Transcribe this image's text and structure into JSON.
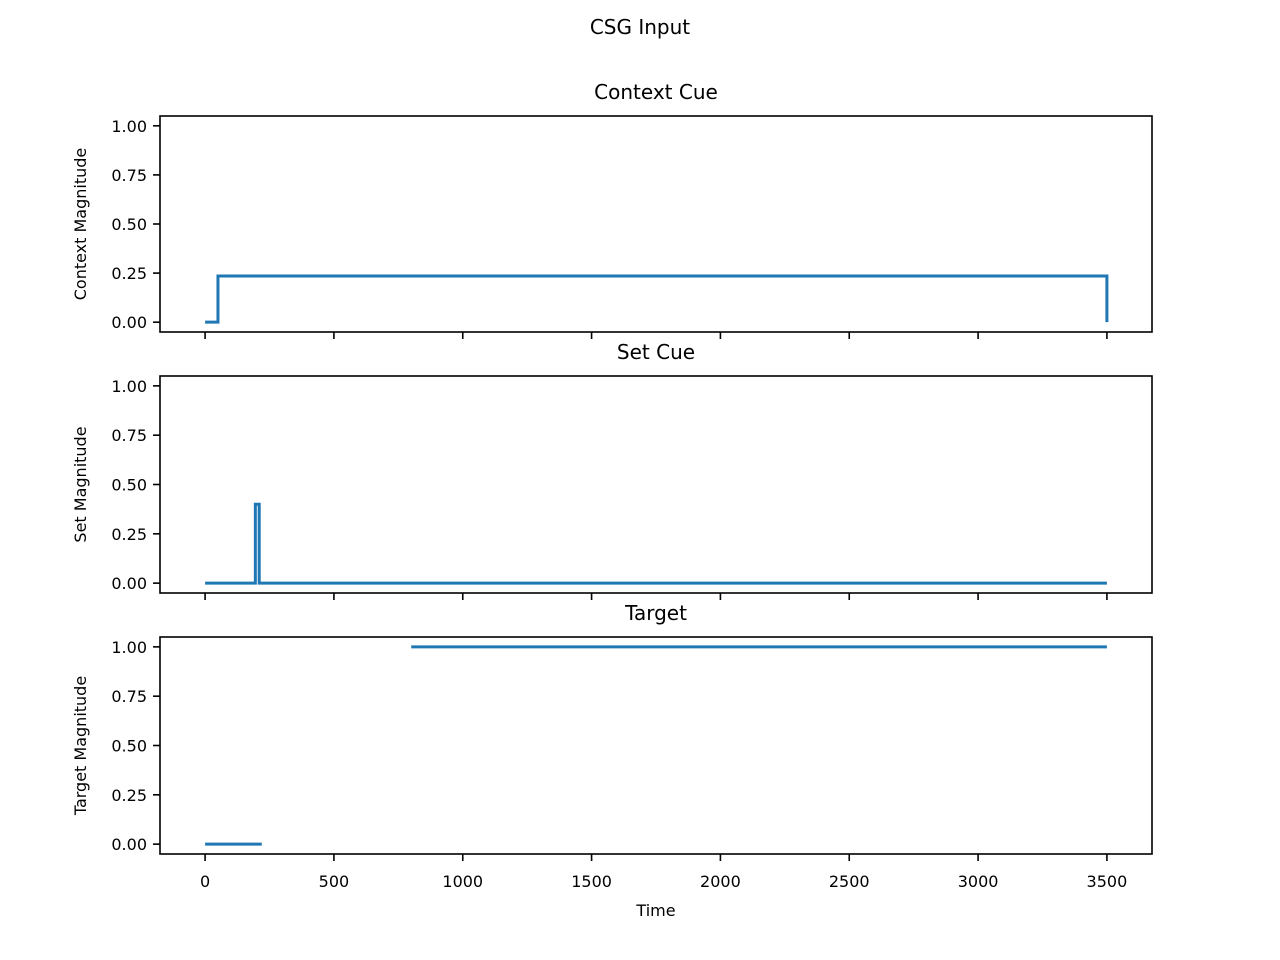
{
  "figure": {
    "suptitle": "CSG Input",
    "colors": {
      "series": "#1f77b4",
      "axes": "#000000",
      "background": "#ffffff"
    }
  },
  "chart_data": [
    {
      "type": "line",
      "title": "Context Cue",
      "xlabel": "",
      "ylabel": "Context Magnitude",
      "xlim": [
        -175,
        3675
      ],
      "ylim": [
        -0.05,
        1.05
      ],
      "xticks": [
        0,
        500,
        1000,
        1500,
        2000,
        2500,
        3000,
        3500
      ],
      "xtick_labels_shown": false,
      "yticks": [
        0.0,
        0.25,
        0.5,
        0.75,
        1.0
      ],
      "ytick_labels": [
        "0.00",
        "0.25",
        "0.50",
        "0.75",
        "1.00"
      ],
      "grid": false,
      "legend": "none",
      "series": [
        {
          "x": [
            0,
            50,
            50,
            3500,
            3500
          ],
          "y": [
            0.0,
            0.0,
            0.235,
            0.235,
            0.0
          ]
        }
      ]
    },
    {
      "type": "line",
      "title": "Set Cue",
      "xlabel": "",
      "ylabel": "Set Magnitude",
      "xlim": [
        -175,
        3675
      ],
      "ylim": [
        -0.05,
        1.05
      ],
      "xticks": [
        0,
        500,
        1000,
        1500,
        2000,
        2500,
        3000,
        3500
      ],
      "xtick_labels_shown": false,
      "yticks": [
        0.0,
        0.25,
        0.5,
        0.75,
        1.0
      ],
      "ytick_labels": [
        "0.00",
        "0.25",
        "0.50",
        "0.75",
        "1.00"
      ],
      "grid": false,
      "legend": "none",
      "series": [
        {
          "x": [
            0,
            195,
            195,
            210,
            210,
            3500
          ],
          "y": [
            0.0,
            0.0,
            0.4,
            0.4,
            0.0,
            0.0
          ]
        }
      ]
    },
    {
      "type": "line",
      "title": "Target",
      "xlabel": "Time",
      "ylabel": "Target Magnitude",
      "xlim": [
        -175,
        3675
      ],
      "ylim": [
        -0.05,
        1.05
      ],
      "xticks": [
        0,
        500,
        1000,
        1500,
        2000,
        2500,
        3000,
        3500
      ],
      "xtick_labels": [
        "0",
        "500",
        "1000",
        "1500",
        "2000",
        "2500",
        "3000",
        "3500"
      ],
      "xtick_labels_shown": true,
      "yticks": [
        0.0,
        0.25,
        0.5,
        0.75,
        1.0
      ],
      "ytick_labels": [
        "0.00",
        "0.25",
        "0.50",
        "0.75",
        "1.00"
      ],
      "grid": false,
      "legend": "none",
      "series": [
        {
          "segments": [
            {
              "x": [
                0,
                220
              ],
              "y": [
                0.0,
                0.0
              ]
            },
            {
              "x": [
                800,
                3500
              ],
              "y": [
                1.0,
                1.0
              ]
            }
          ]
        }
      ]
    }
  ]
}
